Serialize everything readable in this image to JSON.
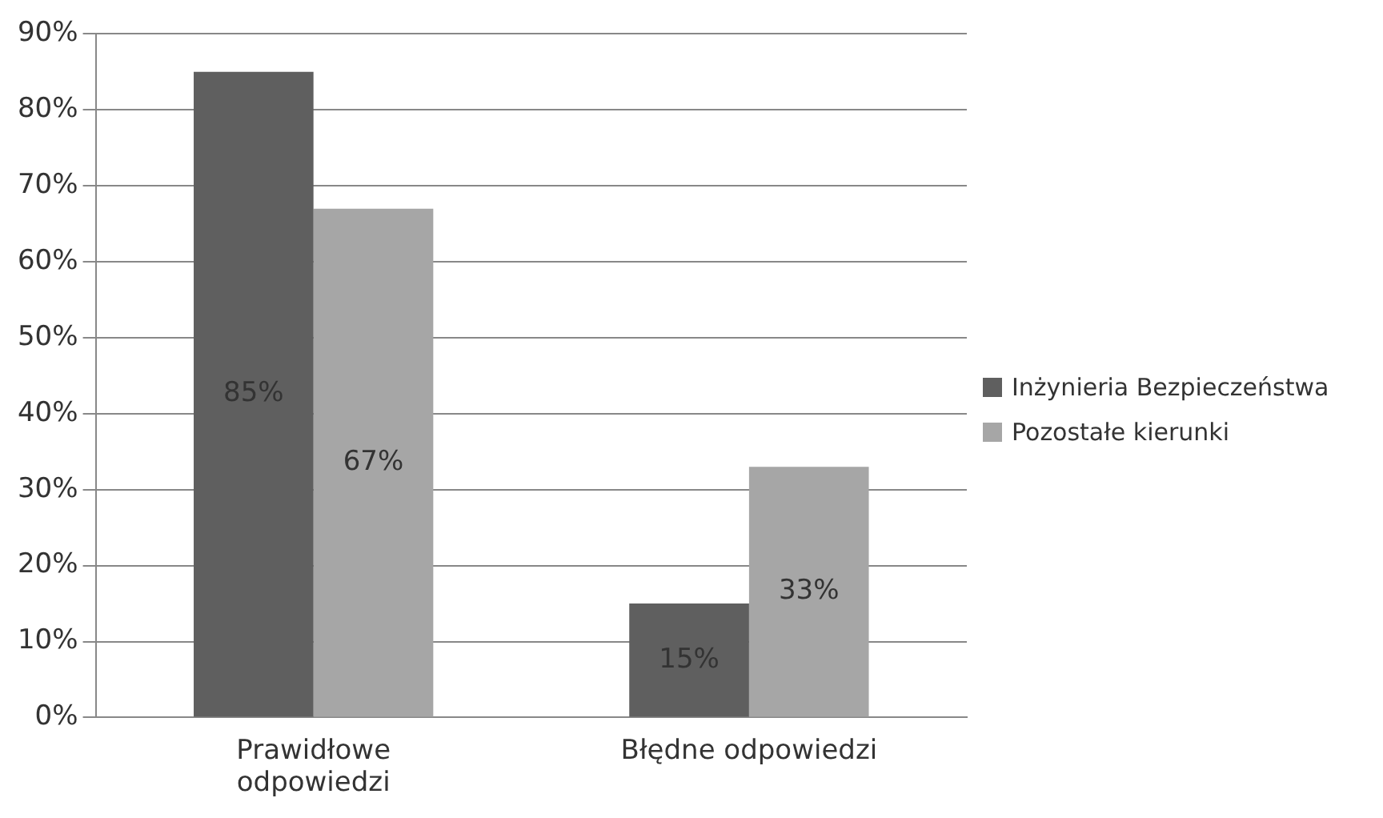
{
  "chart_data": {
    "type": "bar",
    "categories": [
      "Prawidłowe odpowiedzi",
      "Błędne odpowiedzi"
    ],
    "series": [
      {
        "name": "Inżynieria Bezpieczeństwa",
        "color": "#5f5f5f",
        "values": [
          85,
          15
        ],
        "value_labels": [
          "85%",
          "15%"
        ]
      },
      {
        "name": "Pozostałe kierunki",
        "color": "#a6a6a6",
        "values": [
          67,
          33
        ],
        "value_labels": [
          "67%",
          "33%"
        ]
      }
    ],
    "ylim": [
      0,
      90
    ],
    "yticks": [
      {
        "value": 0,
        "label": "0%"
      },
      {
        "value": 10,
        "label": "10%"
      },
      {
        "value": 20,
        "label": "20%"
      },
      {
        "value": 30,
        "label": "30%"
      },
      {
        "value": 40,
        "label": "40%"
      },
      {
        "value": 50,
        "label": "50%"
      },
      {
        "value": 60,
        "label": "60%"
      },
      {
        "value": 70,
        "label": "70%"
      },
      {
        "value": 80,
        "label": "80%"
      },
      {
        "value": 90,
        "label": "90%"
      }
    ],
    "grid": "y",
    "legend": "right"
  }
}
